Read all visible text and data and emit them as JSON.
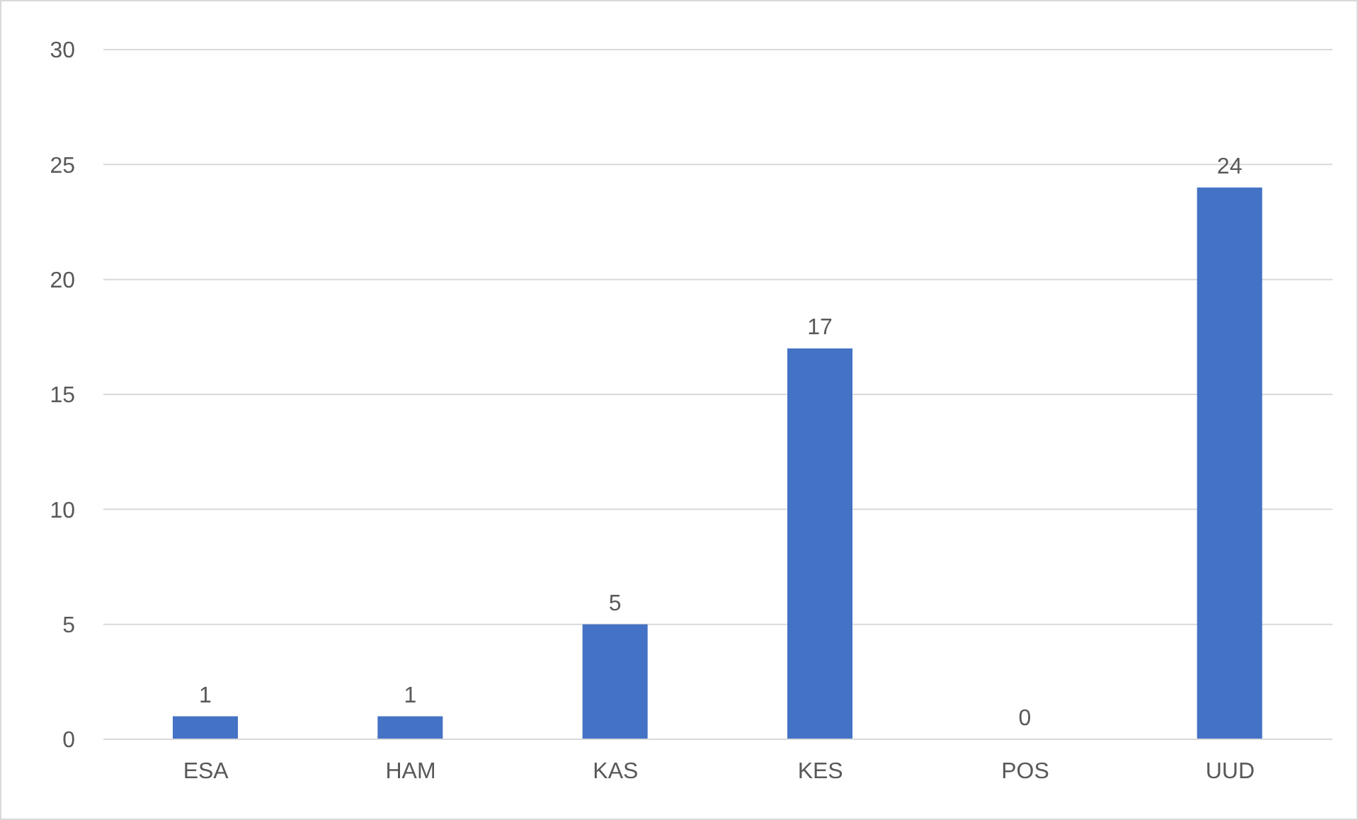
{
  "chart_data": {
    "type": "bar",
    "categories": [
      "ESA",
      "HAM",
      "KAS",
      "KES",
      "POS",
      "UUD"
    ],
    "values": [
      1,
      1,
      5,
      17,
      0,
      24
    ],
    "color": "#4472c4",
    "ylim": [
      0,
      30
    ],
    "yticks": [
      0,
      5,
      10,
      15,
      20,
      25,
      30
    ],
    "grid": "y",
    "data_labels": true,
    "legend": false
  }
}
